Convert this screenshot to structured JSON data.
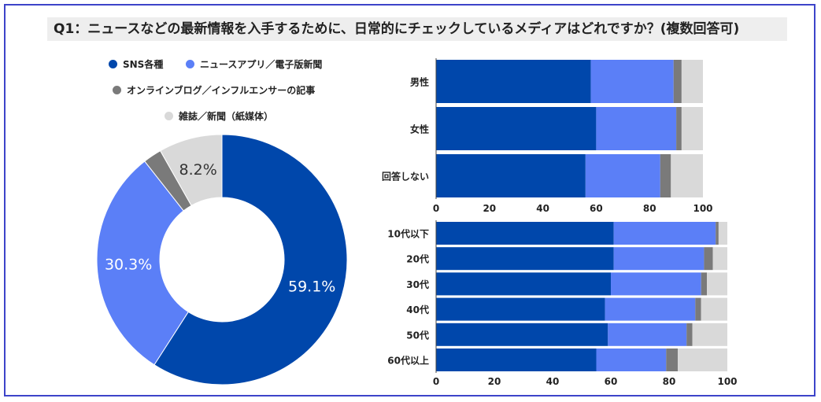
{
  "title": "Q1：ニュースなどの最新情報を入手するために、日常的にチェックしているメディアはどれですか？(複数回答可)",
  "colors": {
    "sns": "#0047ab",
    "news_app": "#5b7ff7",
    "blog": "#7a7a7a",
    "print": "#d9d9d9",
    "frame": "#3d44c9"
  },
  "chart_data": [
    {
      "type": "pie",
      "subtype": "donut",
      "categories": [
        "SNS各種",
        "ニュースアプリ／電子版新聞",
        "オンラインブログ／インフルエンサーの記事",
        "雑誌／新聞（紙媒体）"
      ],
      "values": [
        59.1,
        30.3,
        2.4,
        8.2
      ],
      "data_labels": [
        "59.1%",
        "30.3%",
        "",
        "8.2%"
      ],
      "legend_position": "top"
    },
    {
      "type": "bar",
      "orientation": "horizontal",
      "stacked": true,
      "categories": [
        "男性",
        "女性",
        "回答しない"
      ],
      "series": [
        {
          "name": "SNS各種",
          "values": [
            58,
            60,
            56
          ]
        },
        {
          "name": "ニュースアプリ／電子版新聞",
          "values": [
            31,
            30,
            28
          ]
        },
        {
          "name": "オンラインブログ／インフルエンサーの記事",
          "values": [
            3,
            2,
            4
          ]
        },
        {
          "name": "雑誌／新聞（紙媒体）",
          "values": [
            8,
            8,
            12
          ]
        }
      ],
      "xlim": [
        0,
        100
      ],
      "xticks": [
        "0",
        "20",
        "40",
        "60",
        "80",
        "100"
      ]
    },
    {
      "type": "bar",
      "orientation": "horizontal",
      "stacked": true,
      "categories": [
        "10代以下",
        "20代",
        "30代",
        "40代",
        "50代",
        "60代以上"
      ],
      "series": [
        {
          "name": "SNS各種",
          "values": [
            61,
            61,
            60,
            58,
            59,
            55
          ]
        },
        {
          "name": "ニュースアプリ／電子版新聞",
          "values": [
            35,
            31,
            31,
            31,
            27,
            24
          ]
        },
        {
          "name": "オンラインブログ／インフルエンサーの記事",
          "values": [
            1,
            3,
            2,
            2,
            2,
            4
          ]
        },
        {
          "name": "雑誌／新聞（紙媒体）",
          "values": [
            3,
            5,
            7,
            9,
            12,
            17
          ]
        }
      ],
      "xlim": [
        0,
        100
      ],
      "xticks": [
        "0",
        "20",
        "40",
        "60",
        "80",
        "100"
      ]
    }
  ]
}
